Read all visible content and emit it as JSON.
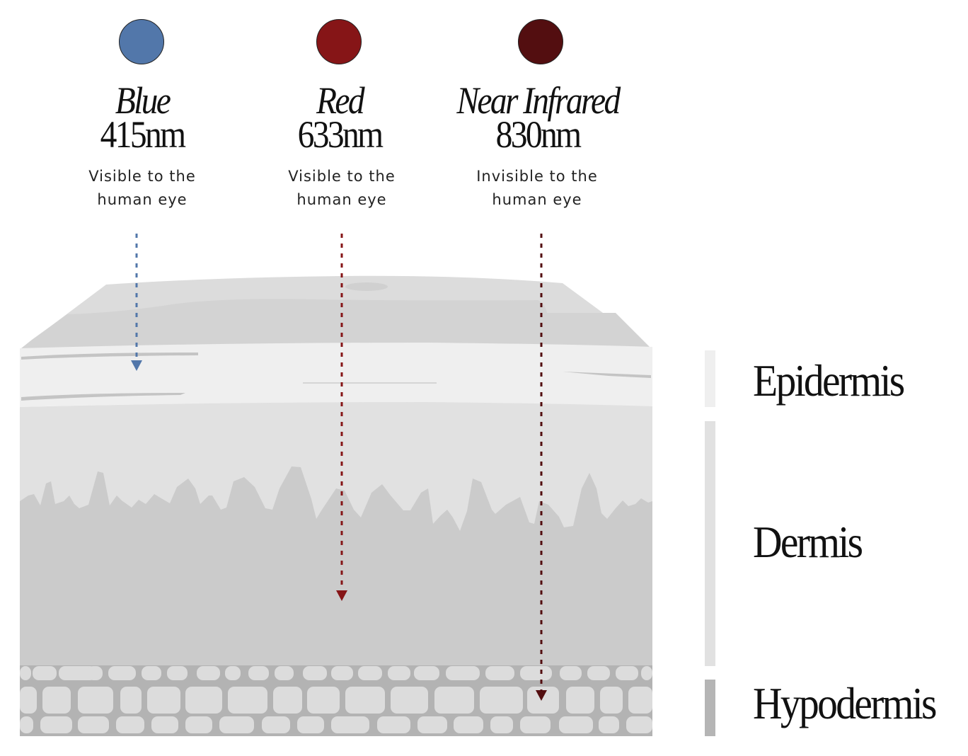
{
  "wavelengths": [
    {
      "name": "Blue",
      "nm": "415nm",
      "desc1": "Visible to the",
      "desc2": "human eye",
      "color": "#5277AA"
    },
    {
      "name": "Red",
      "nm": "633nm",
      "desc1": "Visible to the",
      "desc2": "human eye",
      "color": "#861517"
    },
    {
      "name": "Near Infrared",
      "nm": "830nm",
      "desc1": "Invisible to the",
      "desc2": "human eye",
      "color": "#530E10"
    }
  ],
  "layers": [
    {
      "label": "Epidermis",
      "color": "#efefef"
    },
    {
      "label": "Dermis",
      "color": "#e1e1e1"
    },
    {
      "label": "Hypodermis",
      "color": "#b5b5b5"
    }
  ]
}
